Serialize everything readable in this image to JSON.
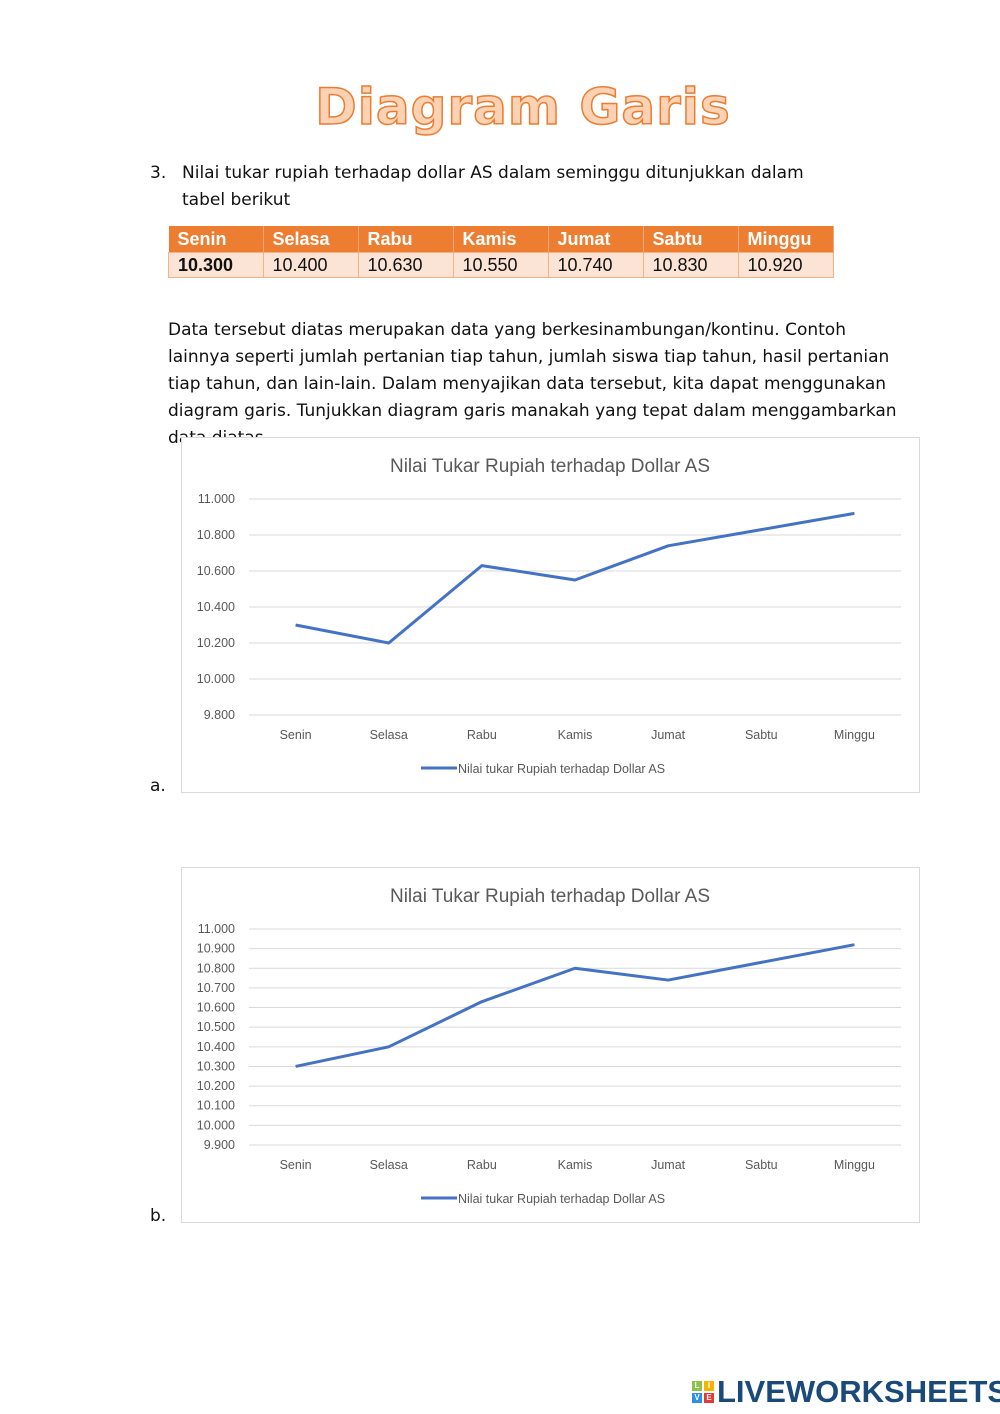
{
  "title": "Diagram Garis",
  "question": {
    "number": "3.",
    "text": "Nilai tukar rupiah terhadap dollar AS dalam seminggu ditunjukkan dalam tabel berikut"
  },
  "table": {
    "headers": [
      "Senin",
      "Selasa",
      "Rabu",
      "Kamis",
      "Jumat",
      "Sabtu",
      "Minggu"
    ],
    "values": [
      "10.300",
      "10.400",
      "10.630",
      "10.550",
      "10.740",
      "10.830",
      "10.920"
    ]
  },
  "paragraph": "Data tersebut diatas merupakan data yang berkesinambungan/kontinu. Contoh lainnya seperti jumlah pertanian tiap tahun, jumlah siswa tiap tahun, hasil pertanian tiap tahun, dan lain-lain.  Dalam menyajikan data tersebut, kita dapat menggunakan diagram garis. Tunjukkan diagram garis manakah yang tepat dalam menggambarkan data diatas.",
  "options": [
    "a.",
    "b."
  ],
  "chart_data": [
    {
      "type": "line",
      "title": "Nilai Tukar Rupiah terhadap Dollar AS",
      "categories": [
        "Senin",
        "Selasa",
        "Rabu",
        "Kamis",
        "Jumat",
        "Sabtu",
        "Minggu"
      ],
      "series": [
        {
          "name": "Nilai tukar Rupiah terhadap Dollar AS",
          "values": [
            10300,
            10200,
            10630,
            10550,
            10740,
            10830,
            10920
          ]
        }
      ],
      "ylim": [
        9800,
        11000
      ],
      "yticks": [
        "9.800",
        "10.000",
        "10.200",
        "10.400",
        "10.600",
        "10.800",
        "11.000"
      ],
      "ystep": 200,
      "grid": true,
      "legend": "bottom",
      "color": "#4472c4"
    },
    {
      "type": "line",
      "title": "Nilai Tukar Rupiah terhadap Dollar AS",
      "categories": [
        "Senin",
        "Selasa",
        "Rabu",
        "Kamis",
        "Jumat",
        "Sabtu",
        "Minggu"
      ],
      "series": [
        {
          "name": "Nilai tukar Rupiah terhadap Dollar AS",
          "values": [
            10300,
            10400,
            10630,
            10800,
            10740,
            10830,
            10920
          ]
        }
      ],
      "ylim": [
        9900,
        11000
      ],
      "yticks": [
        "9.900",
        "10.000",
        "10.100",
        "10.200",
        "10.300",
        "10.400",
        "10.500",
        "10.600",
        "10.700",
        "10.800",
        "10.900",
        "11.000"
      ],
      "ystep": 100,
      "grid": true,
      "legend": "bottom",
      "color": "#4472c4"
    }
  ],
  "logo": {
    "text": "LIVEWORKSHEETS",
    "letters": [
      "L",
      "I",
      "V",
      "E"
    ]
  }
}
